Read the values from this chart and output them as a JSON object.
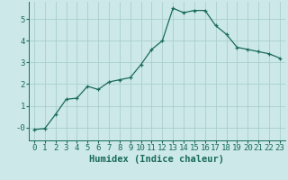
{
  "x": [
    0,
    1,
    2,
    3,
    4,
    5,
    6,
    7,
    8,
    9,
    10,
    11,
    12,
    13,
    14,
    15,
    16,
    17,
    18,
    19,
    20,
    21,
    22,
    23
  ],
  "y": [
    -0.1,
    -0.05,
    0.6,
    1.3,
    1.35,
    1.9,
    1.75,
    2.1,
    2.2,
    2.3,
    2.9,
    3.6,
    4.0,
    5.5,
    5.3,
    5.4,
    5.4,
    4.7,
    4.3,
    3.7,
    3.6,
    3.5,
    3.4,
    3.2
  ],
  "line_color": "#1a6b5a",
  "marker": "+",
  "bg_color": "#cce8e8",
  "grid_color": "#aacece",
  "xlabel": "Humidex (Indice chaleur)",
  "ylim": [
    -0.6,
    5.8
  ],
  "xlim": [
    -0.5,
    23.5
  ],
  "yticks": [
    0,
    1,
    2,
    3,
    4,
    5
  ],
  "ytick_labels": [
    "-0",
    "1",
    "2",
    "3",
    "4",
    "5"
  ],
  "xticks": [
    0,
    1,
    2,
    3,
    4,
    5,
    6,
    7,
    8,
    9,
    10,
    11,
    12,
    13,
    14,
    15,
    16,
    17,
    18,
    19,
    20,
    21,
    22,
    23
  ],
  "tick_font_size": 6.5,
  "label_font_size": 7.5
}
